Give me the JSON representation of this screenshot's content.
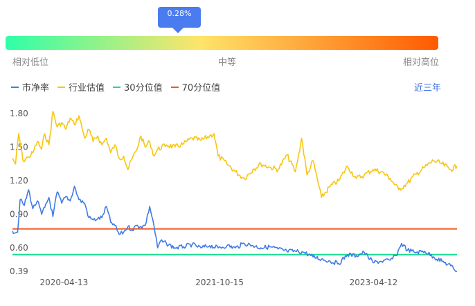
{
  "gauge": {
    "percentile_label": "0.28%",
    "percentile": 0.28,
    "labels": {
      "low": "相对低位",
      "mid": "中等",
      "high": "相对高位"
    },
    "gradient": [
      "#2effa8",
      "#ffe46a",
      "#ff5a00"
    ]
  },
  "legend": {
    "items": [
      {
        "label": "市净率",
        "color": "#3f7be8"
      },
      {
        "label": "行业估值",
        "color": "#f7c611"
      },
      {
        "label": "30分位值",
        "color": "#18dd90"
      },
      {
        "label": "70分位值",
        "color": "#f2561a"
      }
    ]
  },
  "period_label": "近三年",
  "chart_data": {
    "type": "line",
    "x_ticks": [
      "2020-04-13",
      "2021-10-15",
      "2023-04-12"
    ],
    "y_ticks": [
      0.39,
      0.6,
      0.9,
      1.2,
      1.5,
      1.8
    ],
    "y_tick_labels": [
      "0.39",
      "0.60",
      "0.90",
      "1.20",
      "1.50",
      "1.80"
    ],
    "ylim": [
      0.39,
      1.8
    ],
    "xlim": [
      "2019-10-14",
      "2024-02-01"
    ],
    "grid": false,
    "series": [
      {
        "name": "市净率",
        "color": "#3f7be8",
        "points": [
          [
            "2019-10-14",
            0.75
          ],
          [
            "2019-11-01",
            0.74
          ],
          [
            "2019-11-10",
            1.03
          ],
          [
            "2019-11-25",
            0.98
          ],
          [
            "2019-12-10",
            1.12
          ],
          [
            "2019-12-25",
            0.95
          ],
          [
            "2020-01-10",
            1.02
          ],
          [
            "2020-01-25",
            0.9
          ],
          [
            "2020-02-05",
            0.96
          ],
          [
            "2020-02-20",
            1.05
          ],
          [
            "2020-03-05",
            0.88
          ],
          [
            "2020-03-20",
            1.1
          ],
          [
            "2020-04-05",
            1.0
          ],
          [
            "2020-04-20",
            1.06
          ],
          [
            "2020-05-05",
            1.02
          ],
          [
            "2020-05-20",
            1.15
          ],
          [
            "2020-06-05",
            1.03
          ],
          [
            "2020-06-25",
            1.0
          ],
          [
            "2020-07-10",
            0.87
          ],
          [
            "2020-07-25",
            0.85
          ],
          [
            "2020-08-10",
            0.86
          ],
          [
            "2020-08-25",
            0.87
          ],
          [
            "2020-09-10",
            0.97
          ],
          [
            "2020-09-25",
            0.83
          ],
          [
            "2020-10-10",
            0.8
          ],
          [
            "2020-10-25",
            0.72
          ],
          [
            "2020-11-10",
            0.74
          ],
          [
            "2020-11-25",
            0.79
          ],
          [
            "2020-12-10",
            0.76
          ],
          [
            "2020-12-25",
            0.8
          ],
          [
            "2021-01-10",
            0.79
          ],
          [
            "2021-01-25",
            0.8
          ],
          [
            "2021-02-10",
            0.97
          ],
          [
            "2021-02-25",
            0.8
          ],
          [
            "2021-03-10",
            0.6
          ],
          [
            "2021-03-20",
            0.66
          ],
          [
            "2021-04-10",
            0.64
          ],
          [
            "2021-05-10",
            0.6
          ],
          [
            "2021-06-10",
            0.61
          ],
          [
            "2021-07-10",
            0.63
          ],
          [
            "2021-08-10",
            0.6
          ],
          [
            "2021-09-10",
            0.62
          ],
          [
            "2021-10-10",
            0.6
          ],
          [
            "2021-11-10",
            0.62
          ],
          [
            "2021-12-10",
            0.6
          ],
          [
            "2022-01-10",
            0.64
          ],
          [
            "2022-02-10",
            0.62
          ],
          [
            "2022-03-10",
            0.6
          ],
          [
            "2022-04-10",
            0.61
          ],
          [
            "2022-05-10",
            0.59
          ],
          [
            "2022-06-10",
            0.57
          ],
          [
            "2022-07-10",
            0.57
          ],
          [
            "2022-08-10",
            0.56
          ],
          [
            "2022-09-10",
            0.52
          ],
          [
            "2022-10-10",
            0.5
          ],
          [
            "2022-11-10",
            0.48
          ],
          [
            "2022-12-10",
            0.46
          ],
          [
            "2023-01-10",
            0.54
          ],
          [
            "2023-02-10",
            0.53
          ],
          [
            "2023-03-10",
            0.56
          ],
          [
            "2023-04-10",
            0.47
          ],
          [
            "2023-05-10",
            0.48
          ],
          [
            "2023-06-10",
            0.49
          ],
          [
            "2023-07-01",
            0.53
          ],
          [
            "2023-07-20",
            0.64
          ],
          [
            "2023-08-10",
            0.58
          ],
          [
            "2023-09-10",
            0.56
          ],
          [
            "2023-10-10",
            0.57
          ],
          [
            "2023-11-10",
            0.52
          ],
          [
            "2023-12-10",
            0.48
          ],
          [
            "2024-01-10",
            0.44
          ],
          [
            "2024-02-01",
            0.39
          ]
        ]
      },
      {
        "name": "行业估值",
        "color": "#f7c611",
        "points": [
          [
            "2019-10-14",
            1.4
          ],
          [
            "2019-10-25",
            1.35
          ],
          [
            "2019-11-05",
            1.62
          ],
          [
            "2019-11-20",
            1.38
          ],
          [
            "2019-12-10",
            1.41
          ],
          [
            "2019-12-25",
            1.45
          ],
          [
            "2020-01-10",
            1.55
          ],
          [
            "2020-01-25",
            1.48
          ],
          [
            "2020-02-05",
            1.62
          ],
          [
            "2020-02-20",
            1.52
          ],
          [
            "2020-03-05",
            1.82
          ],
          [
            "2020-03-20",
            1.68
          ],
          [
            "2020-04-05",
            1.72
          ],
          [
            "2020-04-20",
            1.66
          ],
          [
            "2020-05-05",
            1.76
          ],
          [
            "2020-05-20",
            1.7
          ],
          [
            "2020-06-05",
            1.78
          ],
          [
            "2020-06-25",
            1.58
          ],
          [
            "2020-07-10",
            1.66
          ],
          [
            "2020-07-25",
            1.55
          ],
          [
            "2020-08-10",
            1.6
          ],
          [
            "2020-08-25",
            1.52
          ],
          [
            "2020-09-10",
            1.58
          ],
          [
            "2020-09-25",
            1.45
          ],
          [
            "2020-10-10",
            1.52
          ],
          [
            "2020-10-25",
            1.4
          ],
          [
            "2020-11-10",
            1.42
          ],
          [
            "2020-11-25",
            1.3
          ],
          [
            "2020-12-10",
            1.4
          ],
          [
            "2020-12-25",
            1.47
          ],
          [
            "2021-01-10",
            1.6
          ],
          [
            "2021-01-25",
            1.5
          ],
          [
            "2021-02-10",
            1.55
          ],
          [
            "2021-02-25",
            1.42
          ],
          [
            "2021-03-10",
            1.48
          ],
          [
            "2021-04-10",
            1.52
          ],
          [
            "2021-05-10",
            1.5
          ],
          [
            "2021-06-10",
            1.53
          ],
          [
            "2021-07-10",
            1.58
          ],
          [
            "2021-08-10",
            1.56
          ],
          [
            "2021-09-10",
            1.6
          ],
          [
            "2021-09-25",
            1.62
          ],
          [
            "2021-10-10",
            1.42
          ],
          [
            "2021-11-10",
            1.35
          ],
          [
            "2021-12-10",
            1.28
          ],
          [
            "2022-01-10",
            1.22
          ],
          [
            "2022-02-10",
            1.3
          ],
          [
            "2022-03-10",
            1.35
          ],
          [
            "2022-04-10",
            1.32
          ],
          [
            "2022-05-10",
            1.3
          ],
          [
            "2022-06-10",
            1.43
          ],
          [
            "2022-07-10",
            1.28
          ],
          [
            "2022-08-01",
            1.58
          ],
          [
            "2022-08-20",
            1.25
          ],
          [
            "2022-09-10",
            1.38
          ],
          [
            "2022-10-10",
            1.05
          ],
          [
            "2022-11-10",
            1.15
          ],
          [
            "2022-12-10",
            1.2
          ],
          [
            "2023-01-10",
            1.33
          ],
          [
            "2023-02-10",
            1.22
          ],
          [
            "2023-03-10",
            1.25
          ],
          [
            "2023-04-10",
            1.3
          ],
          [
            "2023-05-10",
            1.28
          ],
          [
            "2023-06-10",
            1.22
          ],
          [
            "2023-07-10",
            1.12
          ],
          [
            "2023-08-10",
            1.18
          ],
          [
            "2023-09-10",
            1.26
          ],
          [
            "2023-10-10",
            1.32
          ],
          [
            "2023-11-10",
            1.38
          ],
          [
            "2023-12-10",
            1.35
          ],
          [
            "2024-01-10",
            1.3
          ],
          [
            "2024-02-01",
            1.33
          ]
        ]
      },
      {
        "name": "30分位值",
        "color": "#18dd90",
        "points": [
          [
            "2019-10-14",
            0.54
          ],
          [
            "2024-02-01",
            0.54
          ]
        ]
      },
      {
        "name": "70分位值",
        "color": "#f2561a",
        "points": [
          [
            "2019-10-14",
            0.77
          ],
          [
            "2024-02-01",
            0.77
          ]
        ]
      }
    ]
  }
}
